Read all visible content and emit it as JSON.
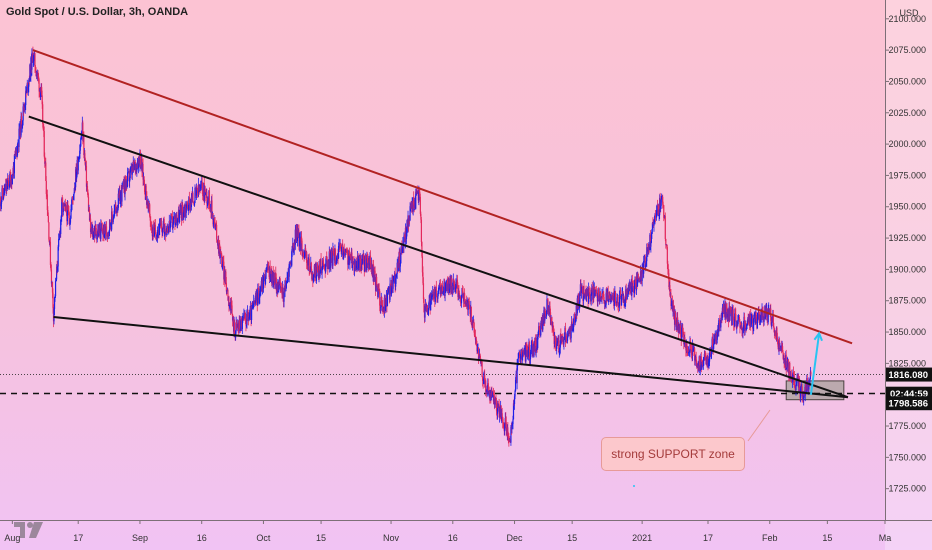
{
  "header": {
    "title": "Gold Spot / U.S. Dollar, 3h, OANDA"
  },
  "axis": {
    "currency": "USD"
  },
  "price_tags": {
    "last_price": "1816.080",
    "countdown": "02:44:59",
    "level": "1798.586"
  },
  "annotation": {
    "text": "strong SUPPORT zone"
  },
  "colors": {
    "upper_trendline": "#b22222",
    "lower_trendlines": "#111111",
    "projection_arrow": "#29c4f2",
    "candles_up": "#1e1ee8",
    "candles_down": "#e3285c",
    "support_box": "#b0a4a4"
  },
  "icons": {
    "logo": "tradingview-logo-icon"
  },
  "chart_data": {
    "type": "candlestick",
    "title": "Gold Spot / U.S. Dollar, 3h, OANDA",
    "y_axis": {
      "unit": "USD",
      "range": [
        1700,
        2115
      ],
      "ticks": [
        "2100.000",
        "2075.000",
        "2050.000",
        "2025.000",
        "2000.000",
        "1975.000",
        "1950.000",
        "1925.000",
        "1900.000",
        "1875.000",
        "1850.000",
        "1825.000",
        "1800.000",
        "1775.000",
        "1750.000",
        "1725.000"
      ]
    },
    "x_axis": {
      "start": "2020-07-29",
      "end": "2021-03-01",
      "ticks": [
        {
          "label": "Aug",
          "date": "2020-08-01"
        },
        {
          "label": "17",
          "date": "2020-08-17"
        },
        {
          "label": "Sep",
          "date": "2020-09-01"
        },
        {
          "label": "16",
          "date": "2020-09-16"
        },
        {
          "label": "Oct",
          "date": "2020-10-01"
        },
        {
          "label": "15",
          "date": "2020-10-15"
        },
        {
          "label": "Nov",
          "date": "2020-11-01"
        },
        {
          "label": "16",
          "date": "2020-11-16"
        },
        {
          "label": "Dec",
          "date": "2020-12-01"
        },
        {
          "label": "15",
          "date": "2020-12-15"
        },
        {
          "label": "2021",
          "date": "2021-01-01"
        },
        {
          "label": "17",
          "date": "2021-01-17"
        },
        {
          "label": "Feb",
          "date": "2021-02-01"
        },
        {
          "label": "15",
          "date": "2021-02-15"
        },
        {
          "label": "Ma",
          "date": "2021-03-01"
        }
      ]
    },
    "price_path": [
      [
        "2020-07-29",
        1955
      ],
      [
        "2020-08-01",
        1975
      ],
      [
        "2020-08-06",
        2072
      ],
      [
        "2020-08-08",
        2040
      ],
      [
        "2020-08-11",
        1865
      ],
      [
        "2020-08-13",
        1950
      ],
      [
        "2020-08-15",
        1942
      ],
      [
        "2020-08-18",
        2012
      ],
      [
        "2020-08-20",
        1930
      ],
      [
        "2020-08-24",
        1930
      ],
      [
        "2020-08-28",
        1965
      ],
      [
        "2020-09-01",
        1990
      ],
      [
        "2020-09-04",
        1930
      ],
      [
        "2020-09-08",
        1935
      ],
      [
        "2020-09-11",
        1945
      ],
      [
        "2020-09-16",
        1965
      ],
      [
        "2020-09-18",
        1955
      ],
      [
        "2020-09-21",
        1905
      ],
      [
        "2020-09-24",
        1852
      ],
      [
        "2020-09-28",
        1865
      ],
      [
        "2020-10-02",
        1900
      ],
      [
        "2020-10-06",
        1880
      ],
      [
        "2020-10-09",
        1930
      ],
      [
        "2020-10-13",
        1895
      ],
      [
        "2020-10-16",
        1905
      ],
      [
        "2020-10-20",
        1915
      ],
      [
        "2020-10-23",
        1905
      ],
      [
        "2020-10-27",
        1905
      ],
      [
        "2020-10-30",
        1868
      ],
      [
        "2020-11-02",
        1893
      ],
      [
        "2020-11-06",
        1950
      ],
      [
        "2020-11-08",
        1962
      ],
      [
        "2020-11-09",
        1865
      ],
      [
        "2020-11-12",
        1880
      ],
      [
        "2020-11-16",
        1890
      ],
      [
        "2020-11-20",
        1870
      ],
      [
        "2020-11-24",
        1805
      ],
      [
        "2020-11-27",
        1790
      ],
      [
        "2020-11-30",
        1765
      ],
      [
        "2020-12-02",
        1830
      ],
      [
        "2020-12-06",
        1838
      ],
      [
        "2020-12-09",
        1873
      ],
      [
        "2020-12-11",
        1838
      ],
      [
        "2020-12-15",
        1853
      ],
      [
        "2020-12-17",
        1882
      ],
      [
        "2020-12-20",
        1880
      ],
      [
        "2020-12-24",
        1875
      ],
      [
        "2020-12-28",
        1878
      ],
      [
        "2021-01-01",
        1895
      ],
      [
        "2021-01-04",
        1940
      ],
      [
        "2021-01-06",
        1958
      ],
      [
        "2021-01-08",
        1870
      ],
      [
        "2021-01-11",
        1845
      ],
      [
        "2021-01-15",
        1825
      ],
      [
        "2021-01-17",
        1830
      ],
      [
        "2021-01-21",
        1868
      ],
      [
        "2021-01-25",
        1855
      ],
      [
        "2021-01-29",
        1860
      ],
      [
        "2021-02-01",
        1865
      ],
      [
        "2021-02-04",
        1833
      ],
      [
        "2021-02-07",
        1812
      ],
      [
        "2021-02-09",
        1800
      ],
      [
        "2021-02-11",
        1816
      ]
    ],
    "trendlines": [
      {
        "from": [
          "2020-08-06",
          2075
        ],
        "to": [
          "2021-02-21",
          1841
        ]
      },
      {
        "from": [
          "2020-08-05",
          2022
        ],
        "to": [
          "2021-02-20",
          1798
        ]
      },
      {
        "from": [
          "2020-08-11",
          1862
        ],
        "to": [
          "2021-02-20",
          1798
        ]
      }
    ],
    "horizontal_lines": [
      {
        "price": 1801,
        "style": "dashed"
      },
      {
        "price": 1816.08,
        "style": "dotted"
      }
    ],
    "support_zone": {
      "x_range": [
        "2021-02-05",
        "2021-02-19"
      ],
      "y_range": [
        1796,
        1811
      ]
    },
    "projection_arrow": {
      "from": [
        "2021-02-11",
        1800
      ],
      "to": [
        "2021-02-13",
        1849
      ]
    },
    "grid": false
  }
}
